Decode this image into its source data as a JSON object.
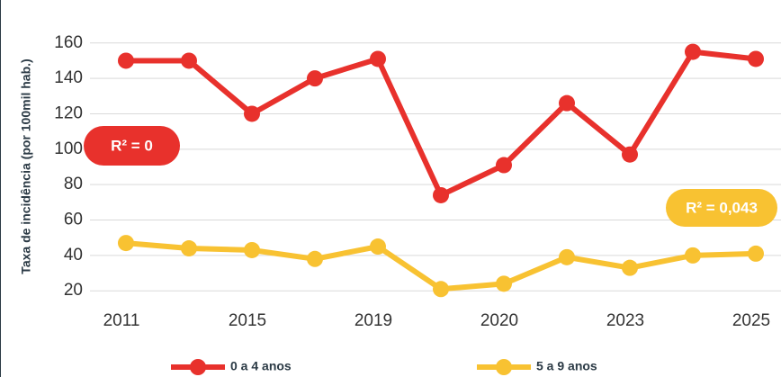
{
  "chart_data": {
    "type": "line",
    "y_label": "Taxa de incidência (por 100mil hab.)",
    "categories": [
      "2011",
      null,
      "2015",
      null,
      "2019",
      null,
      "2020",
      null,
      "2023",
      null,
      "2025"
    ],
    "series": [
      {
        "name": "0 a 4 anos",
        "color": "#e8312c",
        "values": [
          150,
          150,
          120,
          140,
          151,
          74,
          91,
          126,
          97,
          155,
          151
        ]
      },
      {
        "name": "5 a 9 anos",
        "color": "#f8c232",
        "values": [
          47,
          44,
          43,
          38,
          45,
          21,
          24,
          39,
          33,
          40,
          41
        ]
      }
    ],
    "annotations": [
      {
        "text": "R² = 0",
        "color": "#e8312c"
      },
      {
        "text": "R² = 0,043",
        "color": "#f8c232"
      }
    ],
    "ylim": [
      13,
      167
    ],
    "yticks": [
      20,
      40,
      60,
      80,
      100,
      120,
      140,
      160
    ],
    "grid": true
  }
}
